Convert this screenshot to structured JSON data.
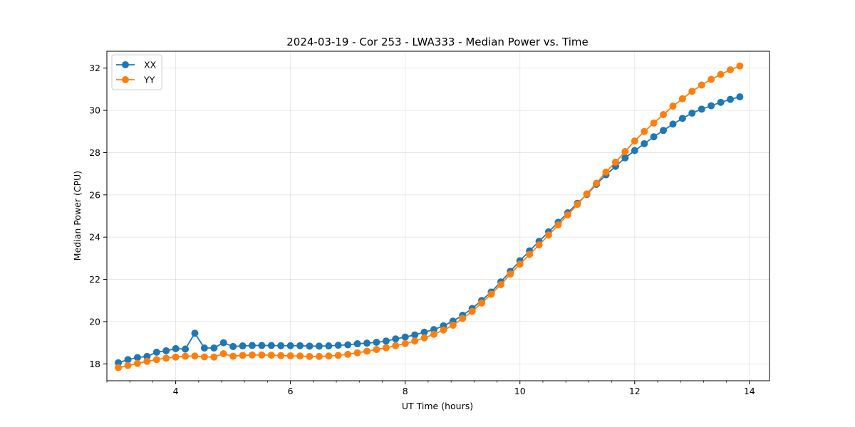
{
  "chart_data": {
    "type": "line",
    "title": "2024-03-19 - Cor 253 - LWA333 - Median Power vs. Time",
    "xlabel": "UT Time (hours)",
    "ylabel": "Median Power (CPU)",
    "xlim": [
      2.8,
      14.35
    ],
    "ylim": [
      17.2,
      32.8
    ],
    "xticks": [
      4,
      6,
      8,
      10,
      12,
      14
    ],
    "yticks": [
      18,
      20,
      22,
      24,
      26,
      28,
      30,
      32
    ],
    "x_minor_step": 0.4,
    "grid": true,
    "legend_position": "upper-left",
    "x": [
      3.0,
      3.167,
      3.333,
      3.5,
      3.667,
      3.833,
      4.0,
      4.167,
      4.333,
      4.5,
      4.667,
      4.833,
      5.0,
      5.167,
      5.333,
      5.5,
      5.667,
      5.833,
      6.0,
      6.167,
      6.333,
      6.5,
      6.667,
      6.833,
      7.0,
      7.167,
      7.333,
      7.5,
      7.667,
      7.833,
      8.0,
      8.167,
      8.333,
      8.5,
      8.667,
      8.833,
      9.0,
      9.167,
      9.333,
      9.5,
      9.667,
      9.833,
      10.0,
      10.167,
      10.333,
      10.5,
      10.667,
      10.833,
      11.0,
      11.167,
      11.333,
      11.5,
      11.667,
      11.833,
      12.0,
      12.167,
      12.333,
      12.5,
      12.667,
      12.833,
      13.0,
      13.167,
      13.333,
      13.5,
      13.667,
      13.833
    ],
    "series": [
      {
        "name": "XX",
        "color": "#1f77b4",
        "values": [
          18.05,
          18.2,
          18.3,
          18.35,
          18.55,
          18.62,
          18.72,
          18.7,
          19.45,
          18.75,
          18.75,
          19.0,
          18.82,
          18.85,
          18.87,
          18.87,
          18.87,
          18.86,
          18.86,
          18.86,
          18.84,
          18.84,
          18.85,
          18.88,
          18.9,
          18.95,
          18.98,
          19.02,
          19.08,
          19.18,
          19.27,
          19.37,
          19.5,
          19.62,
          19.8,
          20.02,
          20.3,
          20.62,
          21.0,
          21.4,
          21.88,
          22.38,
          22.88,
          23.35,
          23.8,
          24.25,
          24.7,
          25.15,
          25.6,
          26.02,
          26.5,
          26.95,
          27.35,
          27.75,
          28.1,
          28.42,
          28.75,
          29.05,
          29.35,
          29.62,
          29.87,
          30.06,
          30.22,
          30.38,
          30.52,
          30.64
        ]
      },
      {
        "name": "YY",
        "color": "#ff7f0e",
        "values": [
          17.82,
          17.92,
          18.02,
          18.12,
          18.2,
          18.27,
          18.32,
          18.36,
          18.37,
          18.33,
          18.32,
          18.48,
          18.36,
          18.4,
          18.42,
          18.42,
          18.41,
          18.39,
          18.38,
          18.37,
          18.35,
          18.35,
          18.37,
          18.4,
          18.45,
          18.52,
          18.6,
          18.68,
          18.76,
          18.86,
          18.96,
          19.08,
          19.23,
          19.4,
          19.6,
          19.83,
          20.15,
          20.48,
          20.88,
          21.3,
          21.75,
          22.25,
          22.72,
          23.18,
          23.63,
          24.1,
          24.58,
          25.05,
          25.55,
          26.05,
          26.55,
          27.08,
          27.55,
          28.05,
          28.55,
          29.0,
          29.4,
          29.8,
          30.2,
          30.55,
          30.9,
          31.2,
          31.47,
          31.7,
          31.92,
          32.1
        ]
      }
    ]
  }
}
